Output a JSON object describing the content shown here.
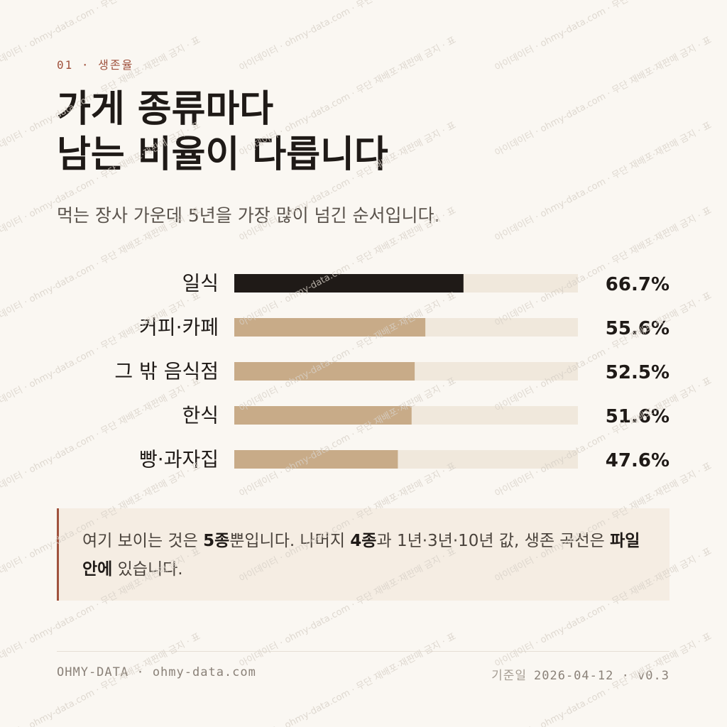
{
  "header": {
    "eyebrow": "01 · 생존율",
    "title_lines": [
      "가게 종류마다",
      "남는 비율이 다릅니다"
    ],
    "subtitle": "먹는 장사 가운데 5년을 가장 많이 넘긴 순서입니다."
  },
  "chart_data": {
    "type": "hbar",
    "categories": [
      "일식",
      "커피·카페",
      "그 밖 음식점",
      "한식",
      "빵·과자집"
    ],
    "values": [
      66.7,
      55.6,
      52.5,
      51.6,
      47.6
    ],
    "value_labels": [
      "66.7%",
      "55.6%",
      "52.5%",
      "51.6%",
      "47.6%"
    ],
    "colors": [
      "#1f1a17",
      "#c8ab88",
      "#c8ab88",
      "#c8ab88",
      "#c8ab88"
    ],
    "track_color": "#f0e8dc",
    "xlim": [
      0,
      100
    ]
  },
  "callout": {
    "parts": [
      {
        "text": "여기 보이는 것은 ",
        "bold": false
      },
      {
        "text": "5종",
        "bold": true
      },
      {
        "text": "뿐입니다. 나머지 ",
        "bold": false
      },
      {
        "text": "4종",
        "bold": true
      },
      {
        "text": "과 1년·3년·10년 값, 생존 곡선은 ",
        "bold": false
      },
      {
        "text": "파일 안에",
        "bold": true
      },
      {
        "text": " 있습니다.",
        "bold": false
      }
    ]
  },
  "footer": {
    "left": "OHMY-DATA · ohmy-data.com",
    "right_label": "기준일",
    "right_value": "2026-04-12 · v0.3"
  },
  "watermark": "아이데이터 · ohmy-data.com · 무단 재배포·재판매 금지 · 표"
}
